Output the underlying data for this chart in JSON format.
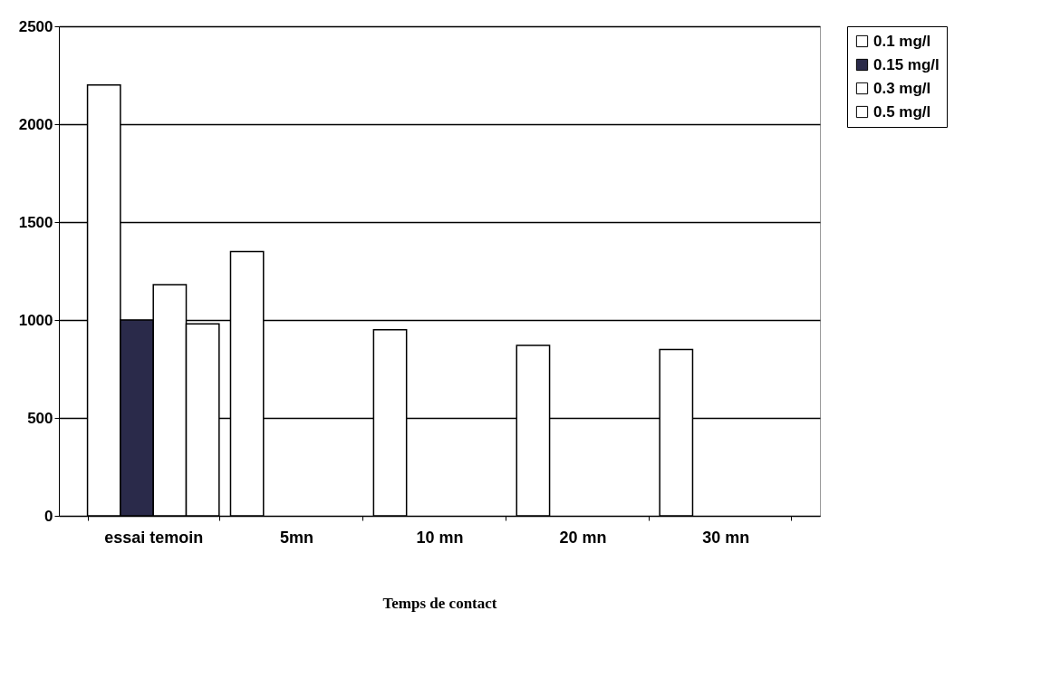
{
  "chart_data": {
    "type": "bar",
    "xlabel": "Temps de contact",
    "categories": [
      "essai temoin",
      "5mn",
      "10 mn",
      "20 mn",
      "30 mn"
    ],
    "series": [
      {
        "name": "0.1 mg/l",
        "color": "#ffffff",
        "values": [
          2200,
          1350,
          950,
          870,
          850
        ]
      },
      {
        "name": "0.15 mg/l",
        "color": "#2a2a4a",
        "values": [
          1000,
          null,
          null,
          null,
          null
        ]
      },
      {
        "name": "0.3 mg/l",
        "color": "#ffffff",
        "values": [
          1180,
          null,
          null,
          null,
          null
        ]
      },
      {
        "name": "0.5 mg/l",
        "color": "#ffffff",
        "values": [
          980,
          null,
          null,
          null,
          null
        ]
      }
    ],
    "ylim": [
      0,
      2500
    ],
    "yticks": [
      0,
      500,
      1000,
      1500,
      2000,
      2500
    ],
    "grid": "y",
    "legend": "right"
  }
}
